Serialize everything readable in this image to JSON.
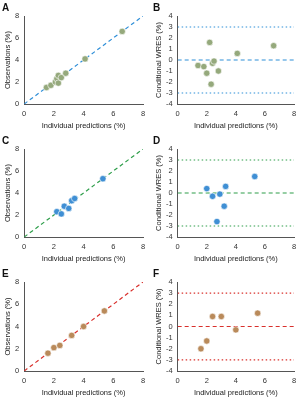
{
  "chart_data": [
    {
      "type": "scatter",
      "label": "A",
      "x_label": "Individual predictions (%)",
      "y_label": "Observations (%)",
      "xlim": [
        0,
        8
      ],
      "xticks": [
        0,
        2,
        4,
        6,
        8
      ],
      "ylim": [
        0,
        8
      ],
      "yticks": [
        0,
        2,
        4,
        6,
        8
      ],
      "grid": false,
      "series": [
        {
          "color": "#95a97c",
          "marker": "circle",
          "x": [
            1.5,
            1.8,
            2.1,
            2.2,
            2.3,
            2.3,
            2.5,
            2.8,
            4.1,
            6.6
          ],
          "values": [
            1.5,
            1.7,
            2.0,
            2.3,
            2.6,
            1.9,
            2.4,
            2.8,
            4.1,
            6.6
          ]
        }
      ],
      "reference_lines": [
        {
          "x": [
            0,
            8
          ],
          "values": [
            0,
            8
          ],
          "color": "#2f8fd8",
          "line_style": "dashed"
        }
      ]
    },
    {
      "type": "scatter",
      "label": "B",
      "x_label": "Individual predictions (%)",
      "y_label": "Conditional WRES (%)",
      "xlim": [
        0,
        8
      ],
      "xticks": [
        0,
        2,
        4,
        6,
        8
      ],
      "ylim": [
        -4,
        4
      ],
      "yticks": [
        -4,
        -3,
        -2,
        -1,
        0,
        1,
        2,
        3,
        4
      ],
      "grid": false,
      "series": [
        {
          "color": "#95a97c",
          "marker": "circle",
          "x": [
            1.4,
            1.8,
            2.0,
            2.2,
            2.3,
            2.4,
            2.5,
            2.8,
            4.1,
            6.6
          ],
          "values": [
            -0.5,
            -0.6,
            -1.2,
            1.6,
            -2.2,
            -0.3,
            -0.1,
            -1.0,
            0.6,
            1.3
          ]
        }
      ],
      "reference_lines": [
        {
          "x": [
            0,
            8
          ],
          "values": [
            0,
            0
          ],
          "color": "#2f8fd8",
          "line_style": "dashed"
        },
        {
          "x": [
            0,
            8
          ],
          "values": [
            3,
            3
          ],
          "color": "#2f8fd8",
          "line_style": "dotted"
        },
        {
          "x": [
            0,
            8
          ],
          "values": [
            -3,
            -3
          ],
          "color": "#2f8fd8",
          "line_style": "dotted"
        }
      ]
    },
    {
      "type": "scatter",
      "label": "C",
      "x_label": "Individual predictions (%)",
      "y_label": "Observations (%)",
      "xlim": [
        0,
        8
      ],
      "xticks": [
        0,
        2,
        4,
        6,
        8
      ],
      "ylim": [
        0,
        8
      ],
      "yticks": [
        0,
        2,
        4,
        6,
        8
      ],
      "grid": false,
      "series": [
        {
          "color": "#3f8fd4",
          "marker": "circle",
          "x": [
            2.2,
            2.5,
            2.7,
            3.0,
            3.2,
            3.4,
            5.3
          ],
          "values": [
            2.3,
            2.1,
            2.8,
            2.6,
            3.3,
            3.5,
            5.3
          ]
        }
      ],
      "reference_lines": [
        {
          "x": [
            0,
            8
          ],
          "values": [
            0,
            8
          ],
          "color": "#2e9e4a",
          "line_style": "dashed"
        }
      ]
    },
    {
      "type": "scatter",
      "label": "D",
      "x_label": "Individual predictions (%)",
      "y_label": "Conditional WRES (%)",
      "xlim": [
        0,
        8
      ],
      "xticks": [
        0,
        2,
        4,
        6,
        8
      ],
      "ylim": [
        -4,
        4
      ],
      "yticks": [
        -4,
        -3,
        -2,
        -1,
        0,
        1,
        2,
        3,
        4
      ],
      "grid": false,
      "series": [
        {
          "color": "#3f8fd4",
          "marker": "circle",
          "x": [
            2.0,
            2.4,
            2.7,
            2.9,
            3.2,
            3.3,
            5.3
          ],
          "values": [
            0.4,
            -0.3,
            -2.6,
            -0.1,
            -1.2,
            0.6,
            1.5
          ]
        }
      ],
      "reference_lines": [
        {
          "x": [
            0,
            8
          ],
          "values": [
            0,
            0
          ],
          "color": "#2e9e4a",
          "line_style": "dashed"
        },
        {
          "x": [
            0,
            8
          ],
          "values": [
            3,
            3
          ],
          "color": "#2e9e4a",
          "line_style": "dotted"
        },
        {
          "x": [
            0,
            8
          ],
          "values": [
            -3,
            -3
          ],
          "color": "#2e9e4a",
          "line_style": "dotted"
        }
      ]
    },
    {
      "type": "scatter",
      "label": "E",
      "x_label": "Individual predictions (%)",
      "y_label": "Observations (%)",
      "xlim": [
        0,
        8
      ],
      "xticks": [
        0,
        2,
        4,
        6,
        8
      ],
      "ylim": [
        0,
        8
      ],
      "yticks": [
        0,
        2,
        4,
        6,
        8
      ],
      "grid": false,
      "series": [
        {
          "color": "#b98a5a",
          "marker": "circle",
          "x": [
            1.6,
            2.0,
            2.4,
            3.2,
            4.0,
            5.4
          ],
          "values": [
            1.6,
            2.1,
            2.3,
            3.2,
            4.0,
            5.4
          ]
        }
      ],
      "reference_lines": [
        {
          "x": [
            0,
            8
          ],
          "values": [
            0,
            8
          ],
          "color": "#d9302c",
          "line_style": "dashed"
        }
      ]
    },
    {
      "type": "scatter",
      "label": "F",
      "x_label": "Individual predictions (%)",
      "y_label": "Conditional WRES (%)",
      "xlim": [
        0,
        8
      ],
      "xticks": [
        0,
        2,
        4,
        6,
        8
      ],
      "ylim": [
        -4,
        4
      ],
      "yticks": [
        -4,
        -3,
        -2,
        -1,
        0,
        1,
        2,
        3,
        4
      ],
      "grid": false,
      "series": [
        {
          "color": "#b98a5a",
          "marker": "circle",
          "x": [
            1.6,
            2.0,
            2.4,
            3.0,
            4.0,
            5.5
          ],
          "values": [
            -2.0,
            -1.3,
            0.9,
            0.9,
            -0.3,
            1.2
          ]
        }
      ],
      "reference_lines": [
        {
          "x": [
            0,
            8
          ],
          "values": [
            0,
            0
          ],
          "color": "#d9302c",
          "line_style": "dashed"
        },
        {
          "x": [
            0,
            8
          ],
          "values": [
            3,
            3
          ],
          "color": "#d9302c",
          "line_style": "dotted"
        },
        {
          "x": [
            0,
            8
          ],
          "values": [
            -3,
            -3
          ],
          "color": "#d9302c",
          "line_style": "dotted"
        }
      ]
    }
  ]
}
